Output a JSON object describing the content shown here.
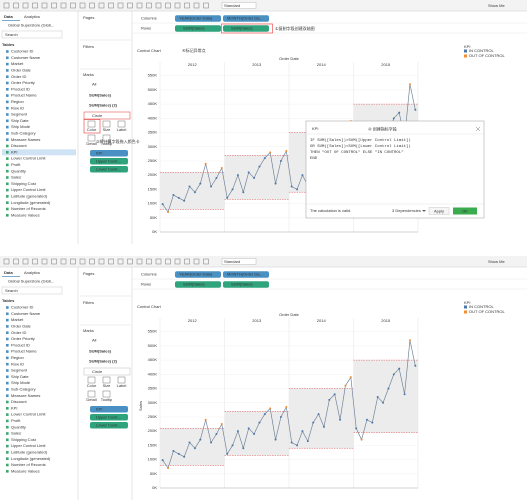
{
  "toolbar": {
    "fit": "Standard",
    "show_me": "Show Me"
  },
  "data_pane": {
    "tabs": [
      "Data",
      "Analytics"
    ],
    "source": "Global Superstore (Glob...",
    "search": "Search",
    "tables": "Tables",
    "fields": [
      "Customer ID",
      "Customer Name",
      "Market",
      "Order Date",
      "Order ID",
      "Order Priority",
      "Product ID",
      "Product Name",
      "Region",
      "Row ID",
      "Segment",
      "Ship Date",
      "Ship Mode",
      "Sub-Category",
      "Measure Names",
      "Discount",
      "KPI",
      "Lower Control Limit",
      "Profit",
      "Quantity",
      "Sales",
      "Shipping Cost",
      "Upper Control Limit",
      "Latitude (generated)",
      "Longitude (generated)",
      "Number of Records",
      "Measure Values"
    ]
  },
  "cards": {
    "pages": "Pages",
    "filters": "Filters",
    "marks": "Marks",
    "mark_layers": [
      "All",
      "SUM(Sales)",
      "SUM(Sales) (2)"
    ],
    "mark_type": "Circle",
    "buttons": [
      "Color",
      "Size",
      "Label",
      "Detail",
      "Tooltip"
    ],
    "pills": [
      "KPI",
      "Upper Contr...",
      "Lower Contr..."
    ]
  },
  "shelves": {
    "columns": "Columns",
    "rows": "Rows",
    "column_pills": [
      "YEAR(Order Date)",
      "MONTH(Order Da..."
    ],
    "row_pills": [
      "SUM(Sales)",
      "SUM(Sales)"
    ]
  },
  "chart_data": {
    "type": "line",
    "title": "Control Chart",
    "x_header": "Order Date",
    "y_label": "Sales",
    "years": [
      {
        "label": "2012",
        "values": [
          98000,
          70000,
          130000,
          120000,
          110000,
          160000,
          140000,
          170000,
          240000,
          160000,
          190000,
          225000
        ],
        "upper": 210000,
        "lower": 80000
      },
      {
        "label": "2013",
        "values": [
          120000,
          150000,
          200000,
          140000,
          210000,
          190000,
          230000,
          260000,
          280000,
          170000,
          250000,
          285000
        ],
        "upper": 270000,
        "lower": 115000
      },
      {
        "label": "2014",
        "values": [
          160000,
          150000,
          200000,
          165000,
          230000,
          260000,
          215000,
          310000,
          330000,
          240000,
          360000,
          390000
        ],
        "upper": 350000,
        "lower": 140000
      },
      {
        "label": "2015",
        "values": [
          210000,
          170000,
          240000,
          230000,
          320000,
          300000,
          350000,
          400000,
          420000,
          330000,
          520000,
          430000
        ],
        "upper": 450000,
        "lower": 195000
      }
    ],
    "ylim": [
      0,
      570000
    ],
    "yticks": [
      {
        "value": 0,
        "label": "0K"
      },
      {
        "value": 50000,
        "label": "50K"
      },
      {
        "value": 100000,
        "label": "100K"
      },
      {
        "value": 150000,
        "label": "150K"
      },
      {
        "value": 200000,
        "label": "200K"
      },
      {
        "value": 250000,
        "label": "250K"
      },
      {
        "value": 300000,
        "label": "300K"
      },
      {
        "value": 350000,
        "label": "350K"
      },
      {
        "value": 400000,
        "label": "400K"
      },
      {
        "value": 450000,
        "label": "450K"
      },
      {
        "value": 500000,
        "label": "500K"
      },
      {
        "value": 550000,
        "label": "550K"
      }
    ],
    "legend": {
      "title": "KPI",
      "items": [
        {
          "name": "IN CONTROL",
          "color": "#4e79a7"
        },
        {
          "name": "OUT OF CONTROL",
          "color": "#f28e2b"
        }
      ]
    }
  },
  "annotations": [
    "④标记异常点",
    "①复制字段创建双轴图",
    "② 创建指标字段",
    "③将计算字段拖入颜色卡"
  ],
  "dialog": {
    "title": "KPI",
    "formula": [
      "IF SUM([Sales])>SUM([Upper Control Limit])",
      "OR SUM([Sales])<SUM([Lower Control Limit])",
      "THEN \"OUT OF CONTROL\" ELSE \"IN CONTROL\"",
      "END"
    ],
    "status": "The calculation is valid.",
    "dependencies": "3 Dependencies",
    "apply": "Apply",
    "ok": "OK"
  }
}
